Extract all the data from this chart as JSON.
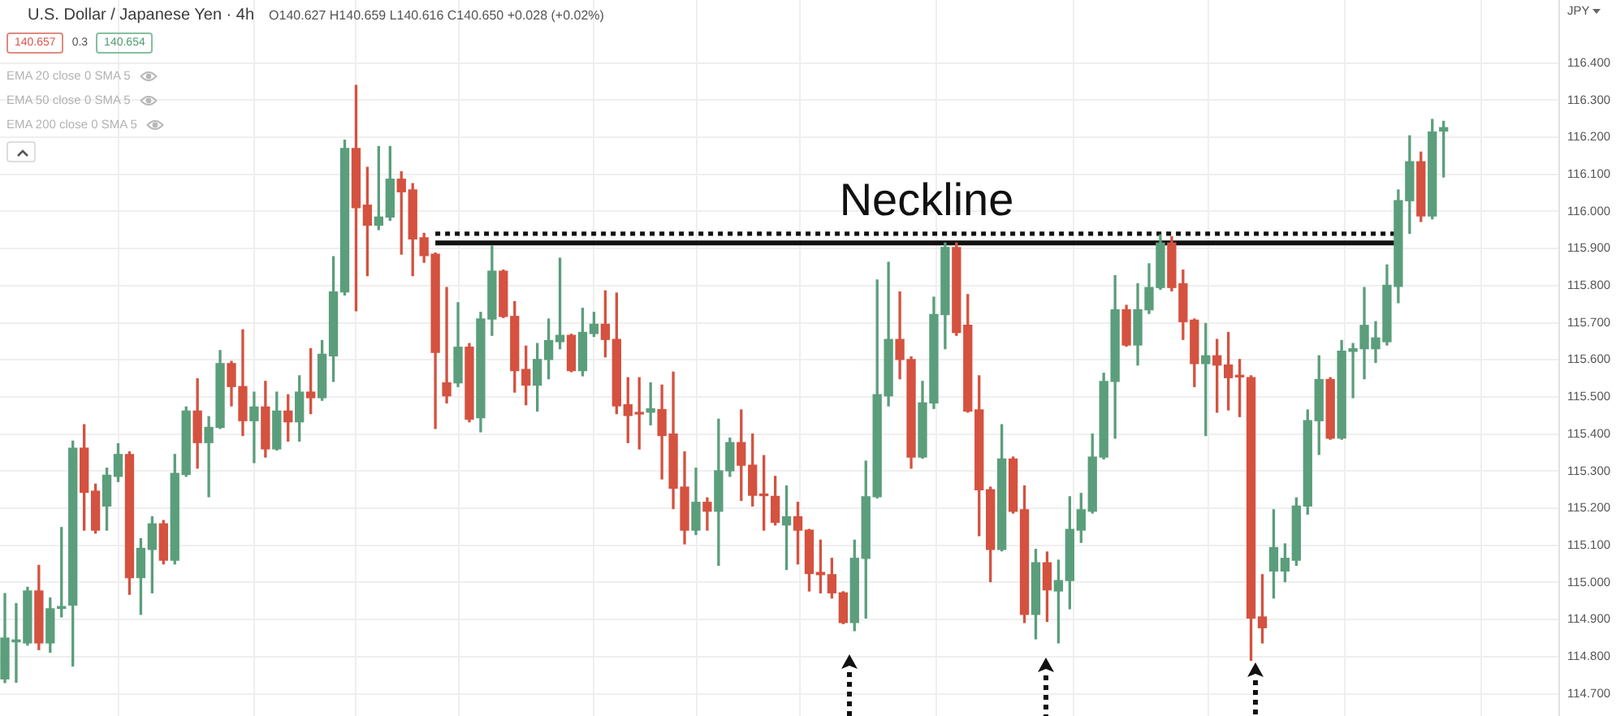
{
  "chart_data": {
    "type": "candlestick",
    "title": "U.S. Dollar / Japanese Yen · 4h",
    "subtitle": "O140.627 H140.659 L140.616 C140.650 +0.028 (+0.02%)",
    "ylabel": "JPY",
    "annotations": [
      "140.657",
      "0.3",
      "140.654",
      "EMA 20 close 0 SMA 5",
      "EMA 50 close 0 SMA 5",
      "EMA 200 close 0 SMA 5"
    ],
    "categories": [
      null,
      null,
      null,
      null,
      null,
      null,
      null,
      null,
      null,
      null,
      null,
      null,
      null,
      null,
      null,
      null,
      null,
      null,
      null,
      null,
      null,
      null,
      null,
      null,
      null,
      null,
      null,
      null,
      null,
      null,
      null,
      null,
      null,
      null,
      null,
      null,
      null,
      null,
      null,
      null,
      null,
      null,
      null,
      null,
      null,
      null,
      null,
      null,
      null,
      null,
      null,
      null,
      null,
      null,
      null,
      null,
      null,
      null,
      null,
      null,
      null,
      null,
      null,
      null,
      null,
      null,
      null,
      null,
      null,
      null,
      null,
      null,
      null,
      null,
      null,
      null,
      null,
      null,
      null,
      null,
      null,
      null,
      null,
      null,
      null,
      null,
      null,
      null,
      null,
      null,
      null,
      null,
      null,
      null,
      null,
      null,
      null,
      null,
      null,
      null,
      null,
      null,
      null,
      null,
      null,
      null,
      null,
      null,
      null,
      null,
      null,
      null,
      null,
      null,
      null,
      null,
      null,
      null,
      null,
      null,
      null,
      null,
      null,
      null,
      null,
      null,
      null,
      null
    ],
    "ohlc": [
      [
        114.74,
        114.97,
        114.73,
        114.85
      ],
      [
        114.84,
        114.943,
        114.731,
        114.845
      ],
      [
        114.837,
        114.987,
        114.831,
        114.977
      ],
      [
        114.977,
        115.046,
        114.819,
        114.837
      ],
      [
        114.837,
        114.958,
        114.812,
        114.929
      ],
      [
        114.93,
        115.148,
        114.907,
        114.935
      ],
      [
        114.939,
        115.381,
        114.775,
        115.362
      ],
      [
        115.362,
        115.425,
        115.141,
        115.243
      ],
      [
        115.246,
        115.265,
        115.133,
        115.141
      ],
      [
        115.206,
        115.308,
        115.141,
        115.289
      ],
      [
        115.286,
        115.374,
        115.272,
        115.345
      ],
      [
        115.345,
        115.352,
        114.968,
        115.013
      ],
      [
        115.013,
        115.118,
        114.914,
        115.092
      ],
      [
        115.089,
        115.177,
        114.972,
        115.158
      ],
      [
        115.158,
        115.167,
        115.05,
        115.06
      ],
      [
        115.06,
        115.345,
        115.05,
        115.294
      ],
      [
        115.291,
        115.473,
        115.286,
        115.462
      ],
      [
        115.462,
        115.549,
        115.308,
        115.377
      ],
      [
        115.377,
        115.447,
        115.231,
        115.418
      ],
      [
        115.418,
        115.625,
        115.415,
        115.59
      ],
      [
        115.59,
        115.596,
        115.476,
        115.528
      ],
      [
        115.528,
        115.681,
        115.396,
        115.436
      ],
      [
        115.436,
        115.513,
        115.323,
        115.473
      ],
      [
        115.473,
        115.542,
        115.338,
        115.36
      ],
      [
        115.36,
        115.513,
        115.357,
        115.462
      ],
      [
        115.462,
        115.506,
        115.381,
        115.433
      ],
      [
        115.433,
        115.557,
        115.381,
        115.513
      ],
      [
        115.513,
        115.63,
        115.455,
        115.498
      ],
      [
        115.498,
        115.652,
        115.491,
        115.615
      ],
      [
        115.611,
        115.878,
        115.542,
        115.783
      ],
      [
        115.783,
        116.192,
        115.775,
        116.17
      ],
      [
        116.17,
        116.34,
        115.732,
        116.01
      ],
      [
        116.017,
        116.119,
        115.827,
        115.963
      ],
      [
        115.963,
        116.175,
        115.951,
        115.985
      ],
      [
        115.985,
        116.175,
        115.976,
        116.087
      ],
      [
        116.087,
        116.107,
        115.885,
        116.053
      ],
      [
        116.058,
        116.075,
        115.827,
        115.926
      ],
      [
        115.929,
        115.941,
        115.863,
        115.881
      ],
      [
        115.885,
        115.888,
        115.415,
        115.62
      ],
      [
        115.538,
        115.795,
        115.484,
        115.503
      ],
      [
        115.538,
        115.754,
        115.528,
        115.634
      ],
      [
        115.634,
        115.644,
        115.433,
        115.44
      ],
      [
        115.444,
        115.728,
        115.406,
        115.71
      ],
      [
        115.71,
        115.907,
        115.666,
        115.839
      ],
      [
        115.839,
        115.842,
        115.714,
        115.717
      ],
      [
        115.717,
        115.757,
        115.513,
        115.571
      ],
      [
        115.574,
        115.637,
        115.479,
        115.532
      ],
      [
        115.532,
        115.644,
        115.462,
        115.601
      ],
      [
        115.601,
        115.71,
        115.549,
        115.652
      ],
      [
        115.649,
        115.874,
        115.63,
        115.666
      ],
      [
        115.666,
        115.669,
        115.568,
        115.571
      ],
      [
        115.571,
        115.739,
        115.557,
        115.674
      ],
      [
        115.671,
        115.728,
        115.663,
        115.696
      ],
      [
        115.696,
        115.786,
        115.608,
        115.655
      ],
      [
        115.655,
        115.78,
        115.455,
        115.476
      ],
      [
        115.479,
        115.552,
        115.377,
        115.45
      ],
      [
        115.457,
        115.552,
        115.36,
        115.454
      ],
      [
        115.459,
        115.538,
        115.425,
        115.468
      ],
      [
        115.466,
        115.532,
        115.279,
        115.396
      ],
      [
        115.4,
        115.567,
        115.199,
        115.254
      ],
      [
        115.257,
        115.352,
        115.104,
        115.141
      ],
      [
        115.141,
        115.308,
        115.129,
        115.216
      ],
      [
        115.216,
        115.228,
        115.141,
        115.192
      ],
      [
        115.192,
        115.44,
        115.046,
        115.301
      ],
      [
        115.301,
        115.389,
        115.286,
        115.377
      ],
      [
        115.377,
        115.465,
        115.221,
        115.316
      ],
      [
        115.316,
        115.4,
        115.206,
        115.235
      ],
      [
        115.238,
        115.342,
        115.141,
        115.234
      ],
      [
        115.232,
        115.286,
        115.155,
        115.162
      ],
      [
        115.155,
        115.26,
        115.035,
        115.177
      ],
      [
        115.177,
        115.216,
        115.05,
        115.141
      ],
      [
        115.141,
        115.143,
        114.977,
        115.024
      ],
      [
        115.027,
        115.114,
        114.972,
        115.021
      ],
      [
        115.021,
        115.065,
        114.958,
        114.972
      ],
      [
        114.972,
        114.975,
        114.889,
        114.892
      ],
      [
        114.892,
        115.114,
        114.87,
        115.065
      ],
      [
        115.065,
        115.327,
        114.904,
        115.231
      ],
      [
        115.231,
        115.815,
        115.228,
        115.506
      ],
      [
        115.503,
        115.863,
        115.476,
        115.655
      ],
      [
        115.655,
        115.783,
        115.549,
        115.601
      ],
      [
        115.601,
        115.608,
        115.308,
        115.338
      ],
      [
        115.338,
        115.542,
        115.335,
        115.484
      ],
      [
        115.484,
        115.769,
        115.469,
        115.722
      ],
      [
        115.722,
        115.915,
        115.63,
        115.903
      ],
      [
        115.903,
        115.915,
        115.666,
        115.674
      ],
      [
        115.693,
        115.776,
        115.459,
        115.462
      ],
      [
        115.465,
        115.557,
        115.126,
        115.25
      ],
      [
        115.25,
        115.257,
        115.002,
        115.089
      ],
      [
        115.089,
        115.425,
        115.085,
        115.333
      ],
      [
        115.333,
        115.338,
        115.187,
        115.192
      ],
      [
        115.196,
        115.26,
        114.892,
        114.914
      ],
      [
        114.914,
        115.089,
        114.848,
        115.053
      ],
      [
        115.053,
        115.082,
        114.895,
        114.98
      ],
      [
        114.977,
        115.06,
        114.837,
        115.005
      ],
      [
        115.005,
        115.231,
        114.929,
        115.143
      ],
      [
        115.141,
        115.24,
        115.108,
        115.196
      ],
      [
        115.192,
        115.4,
        115.187,
        115.338
      ],
      [
        115.338,
        115.564,
        115.333,
        115.542
      ],
      [
        115.542,
        115.827,
        115.389,
        115.735
      ],
      [
        115.735,
        115.747,
        115.637,
        115.64
      ],
      [
        115.64,
        115.805,
        115.586,
        115.735
      ],
      [
        115.735,
        115.859,
        115.725,
        115.795
      ],
      [
        115.795,
        115.937,
        115.79,
        115.915
      ],
      [
        115.915,
        115.932,
        115.786,
        115.795
      ],
      [
        115.805,
        115.842,
        115.655,
        115.703
      ],
      [
        115.707,
        115.71,
        115.528,
        115.59
      ],
      [
        115.59,
        115.698,
        115.396,
        115.611
      ],
      [
        115.611,
        115.655,
        115.459,
        115.586
      ],
      [
        115.586,
        115.674,
        115.465,
        115.552
      ],
      [
        115.557,
        115.601,
        115.447,
        115.554
      ],
      [
        115.552,
        115.557,
        114.79,
        114.904
      ],
      [
        114.907,
        115.021,
        114.837,
        114.878
      ],
      [
        115.031,
        115.196,
        114.958,
        115.094
      ],
      [
        115.031,
        115.104,
        115.002,
        115.065
      ],
      [
        115.06,
        115.228,
        115.046,
        115.206
      ],
      [
        115.206,
        115.465,
        115.184,
        115.436
      ],
      [
        115.436,
        115.611,
        115.345,
        115.547
      ],
      [
        115.547,
        115.552,
        115.386,
        115.389
      ],
      [
        115.389,
        115.652,
        115.386,
        115.623
      ],
      [
        115.623,
        115.644,
        115.498,
        115.63
      ],
      [
        115.63,
        115.795,
        115.549,
        115.693
      ],
      [
        115.63,
        115.703,
        115.593,
        115.659
      ],
      [
        115.649,
        115.856,
        115.64,
        115.801
      ],
      [
        115.798,
        116.058,
        115.754,
        116.029
      ],
      [
        116.029,
        116.204,
        115.941,
        116.134
      ],
      [
        116.134,
        116.16,
        115.973,
        115.988
      ],
      [
        115.988,
        116.248,
        115.98,
        116.214
      ],
      [
        116.217,
        116.243,
        116.093,
        116.226
      ]
    ],
    "colors": [
      "#5b9e7c",
      "#5b9e7c",
      "#5b9e7c",
      "#d4523f",
      "#5b9e7c",
      "#5b9e7c",
      "#5b9e7c",
      "#d4523f",
      "#d4523f",
      "#5b9e7c",
      "#5b9e7c",
      "#d4523f",
      "#5b9e7c",
      "#5b9e7c",
      "#d4523f",
      "#5b9e7c",
      "#5b9e7c",
      "#d4523f",
      "#5b9e7c",
      "#5b9e7c",
      "#d4523f",
      "#d4523f",
      "#5b9e7c",
      "#d4523f",
      "#5b9e7c",
      "#d4523f",
      "#5b9e7c",
      "#d4523f",
      "#5b9e7c",
      "#5b9e7c",
      "#5b9e7c",
      "#d4523f",
      "#d4523f",
      "#5b9e7c",
      "#5b9e7c",
      "#d4523f",
      "#d4523f",
      "#d4523f",
      "#d4523f",
      "#d4523f",
      "#5b9e7c",
      "#d4523f",
      "#5b9e7c",
      "#5b9e7c",
      "#d4523f",
      "#d4523f",
      "#d4523f",
      "#5b9e7c",
      "#5b9e7c",
      "#5b9e7c",
      "#d4523f",
      "#5b9e7c",
      "#5b9e7c",
      "#d4523f",
      "#d4523f",
      "#d4523f",
      "#d4523f",
      "#5b9e7c",
      "#d4523f",
      "#d4523f",
      "#d4523f",
      "#5b9e7c",
      "#d4523f",
      "#5b9e7c",
      "#5b9e7c",
      "#d4523f",
      "#d4523f",
      "#d4523f",
      "#d4523f",
      "#5b9e7c",
      "#d4523f",
      "#d4523f",
      "#d4523f",
      "#d4523f",
      "#d4523f",
      "#5b9e7c",
      "#5b9e7c",
      "#5b9e7c",
      "#5b9e7c",
      "#d4523f",
      "#d4523f",
      "#5b9e7c",
      "#5b9e7c",
      "#5b9e7c",
      "#d4523f",
      "#d4523f",
      "#d4523f",
      "#d4523f",
      "#5b9e7c",
      "#d4523f",
      "#d4523f",
      "#5b9e7c",
      "#d4523f",
      "#5b9e7c",
      "#5b9e7c",
      "#5b9e7c",
      "#5b9e7c",
      "#5b9e7c",
      "#5b9e7c",
      "#d4523f",
      "#5b9e7c",
      "#5b9e7c",
      "#5b9e7c",
      "#d4523f",
      "#d4523f",
      "#d4523f",
      "#5b9e7c",
      "#d4523f",
      "#d4523f",
      "#d4523f",
      "#d4523f",
      "#d4523f",
      "#5b9e7c",
      "#5b9e7c",
      "#5b9e7c",
      "#5b9e7c",
      "#5b9e7c",
      "#d4523f",
      "#5b9e7c",
      "#5b9e7c",
      "#5b9e7c",
      "#5b9e7c",
      "#5b9e7c",
      "#5b9e7c",
      "#5b9e7c",
      "#d4523f",
      "#5b9e7c",
      "#5b9e7c"
    ],
    "series": [
      {
        "type": "line",
        "name": "Neckline",
        "color": "#111111",
        "line_style": "solid",
        "values": [
          null,
          null,
          null,
          null,
          null,
          null,
          null,
          null,
          null,
          null,
          null,
          null,
          null,
          null,
          null,
          null,
          null,
          null,
          null,
          null,
          null,
          null,
          null,
          null,
          null,
          null,
          null,
          null,
          null,
          null,
          null,
          null,
          null,
          null,
          null,
          null,
          null,
          null,
          115.915,
          115.915,
          115.915,
          115.915,
          115.915,
          115.915,
          115.915,
          115.915,
          115.915,
          115.915,
          115.915,
          115.915,
          115.915,
          115.915,
          115.915,
          115.915,
          115.915,
          115.915,
          115.915,
          115.915,
          115.915,
          115.915,
          115.915,
          115.915,
          115.915,
          115.915,
          115.915,
          115.915,
          115.915,
          115.915,
          115.915,
          115.915,
          115.915,
          115.915,
          115.915,
          115.915,
          115.915,
          115.915,
          115.915,
          115.915,
          115.915,
          115.915,
          115.915,
          115.915,
          115.915,
          115.915,
          115.915,
          115.915,
          115.915,
          115.915,
          115.915,
          115.915,
          115.915,
          115.915,
          115.915,
          115.915,
          115.915,
          115.915,
          115.915,
          115.915,
          115.915,
          115.915,
          115.915,
          115.915,
          115.915,
          115.915,
          115.915,
          115.915,
          115.915,
          115.915,
          115.915,
          115.915,
          115.915,
          115.915,
          115.915,
          115.915,
          115.915,
          115.915,
          115.915,
          115.915,
          115.915,
          115.915,
          115.915,
          115.915,
          115.915,
          115.915,
          null,
          null,
          null,
          null
        ]
      },
      {
        "type": "line",
        "color": "#111111",
        "line_style": "dotted",
        "values": [
          null,
          null,
          null,
          null,
          null,
          null,
          null,
          null,
          null,
          null,
          null,
          null,
          null,
          null,
          null,
          null,
          null,
          null,
          null,
          null,
          null,
          null,
          null,
          null,
          null,
          null,
          null,
          null,
          null,
          null,
          null,
          null,
          null,
          null,
          null,
          null,
          null,
          null,
          115.94,
          115.94,
          115.94,
          115.94,
          115.94,
          115.94,
          115.94,
          115.94,
          115.94,
          115.94,
          115.94,
          115.94,
          115.94,
          115.94,
          115.94,
          115.94,
          115.94,
          115.94,
          115.94,
          115.94,
          115.94,
          115.94,
          115.94,
          115.94,
          115.94,
          115.94,
          115.94,
          115.94,
          115.94,
          115.94,
          115.94,
          115.94,
          115.94,
          115.94,
          115.94,
          115.94,
          115.94,
          115.94,
          115.94,
          115.94,
          115.94,
          115.94,
          115.94,
          115.94,
          115.94,
          115.94,
          115.94,
          115.94,
          115.94,
          115.94,
          115.94,
          115.94,
          115.94,
          115.94,
          115.94,
          115.94,
          115.94,
          115.94,
          115.94,
          115.94,
          115.94,
          115.94,
          115.94,
          115.94,
          115.94,
          115.94,
          115.94,
          115.94,
          115.94,
          115.94,
          115.94,
          115.94,
          115.94,
          115.94,
          115.94,
          115.94,
          115.94,
          115.94,
          115.94,
          115.94,
          115.94,
          115.94,
          115.94,
          115.94,
          115.94,
          115.94,
          null,
          null,
          null,
          null
        ]
      }
    ],
    "ylim": [
      114.64,
      116.57
    ],
    "yticks": [
      {
        "value": 114.7,
        "label": "114.700"
      },
      {
        "value": 114.8,
        "label": "114.800"
      },
      {
        "value": 114.9,
        "label": "114.900"
      },
      {
        "value": 115.0,
        "label": "115.000"
      },
      {
        "value": 115.1,
        "label": "115.100"
      },
      {
        "value": 115.2,
        "label": "115.200"
      },
      {
        "value": 115.3,
        "label": "115.300"
      },
      {
        "value": 115.4,
        "label": "115.400"
      },
      {
        "value": 115.5,
        "label": "115.500"
      },
      {
        "value": 115.6,
        "label": "115.600"
      },
      {
        "value": 115.7,
        "label": "115.700"
      },
      {
        "value": 115.8,
        "label": "115.800"
      },
      {
        "value": 115.9,
        "label": "115.900"
      },
      {
        "value": 116.0,
        "label": "116.000"
      },
      {
        "value": 116.1,
        "label": "116.100"
      },
      {
        "value": 116.2,
        "label": "116.200"
      },
      {
        "value": 116.3,
        "label": "116.300"
      },
      {
        "value": 116.4,
        "label": "116.400"
      }
    ],
    "grid": true,
    "marker": "none"
  }
}
